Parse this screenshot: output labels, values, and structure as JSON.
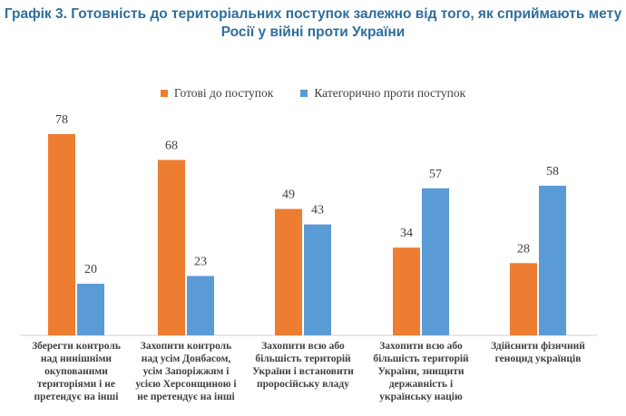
{
  "title_line1": "Графік 3. Готовність до територіальних поступок залежно від того, як сприймають мету",
  "title_line2": "Росії у війні проти України",
  "colors": {
    "series1": "#ED7D31",
    "series2": "#5B9BD5",
    "title": "#2E6E9E"
  },
  "chart_data": {
    "type": "bar",
    "categories": [
      [
        "Зберегти контроль",
        "над нинішніми",
        "окупованими",
        "територіями і не",
        "претендує на інші"
      ],
      [
        "Захопити контроль",
        "над усім Донбасом,",
        "усім Запоріжжям і",
        "усією Херсонщиною і",
        "не претендує на інші"
      ],
      [
        "Захопити всю або",
        "більшість територій",
        "України і встановити",
        "проросійську владу"
      ],
      [
        "Захопити всю або",
        "більшість територій",
        "України, знищити",
        "державність і",
        "українську націю"
      ],
      [
        "Здійснити фізичний",
        "геноцид українців"
      ]
    ],
    "series": [
      {
        "name": "Готові до поступок",
        "values": [
          78,
          68,
          49,
          34,
          28
        ]
      },
      {
        "name": "Категорично проти поступок",
        "values": [
          20,
          23,
          43,
          57,
          58
        ]
      }
    ],
    "ylim": [
      0,
      100
    ],
    "legend": "top-center",
    "grid": false
  }
}
